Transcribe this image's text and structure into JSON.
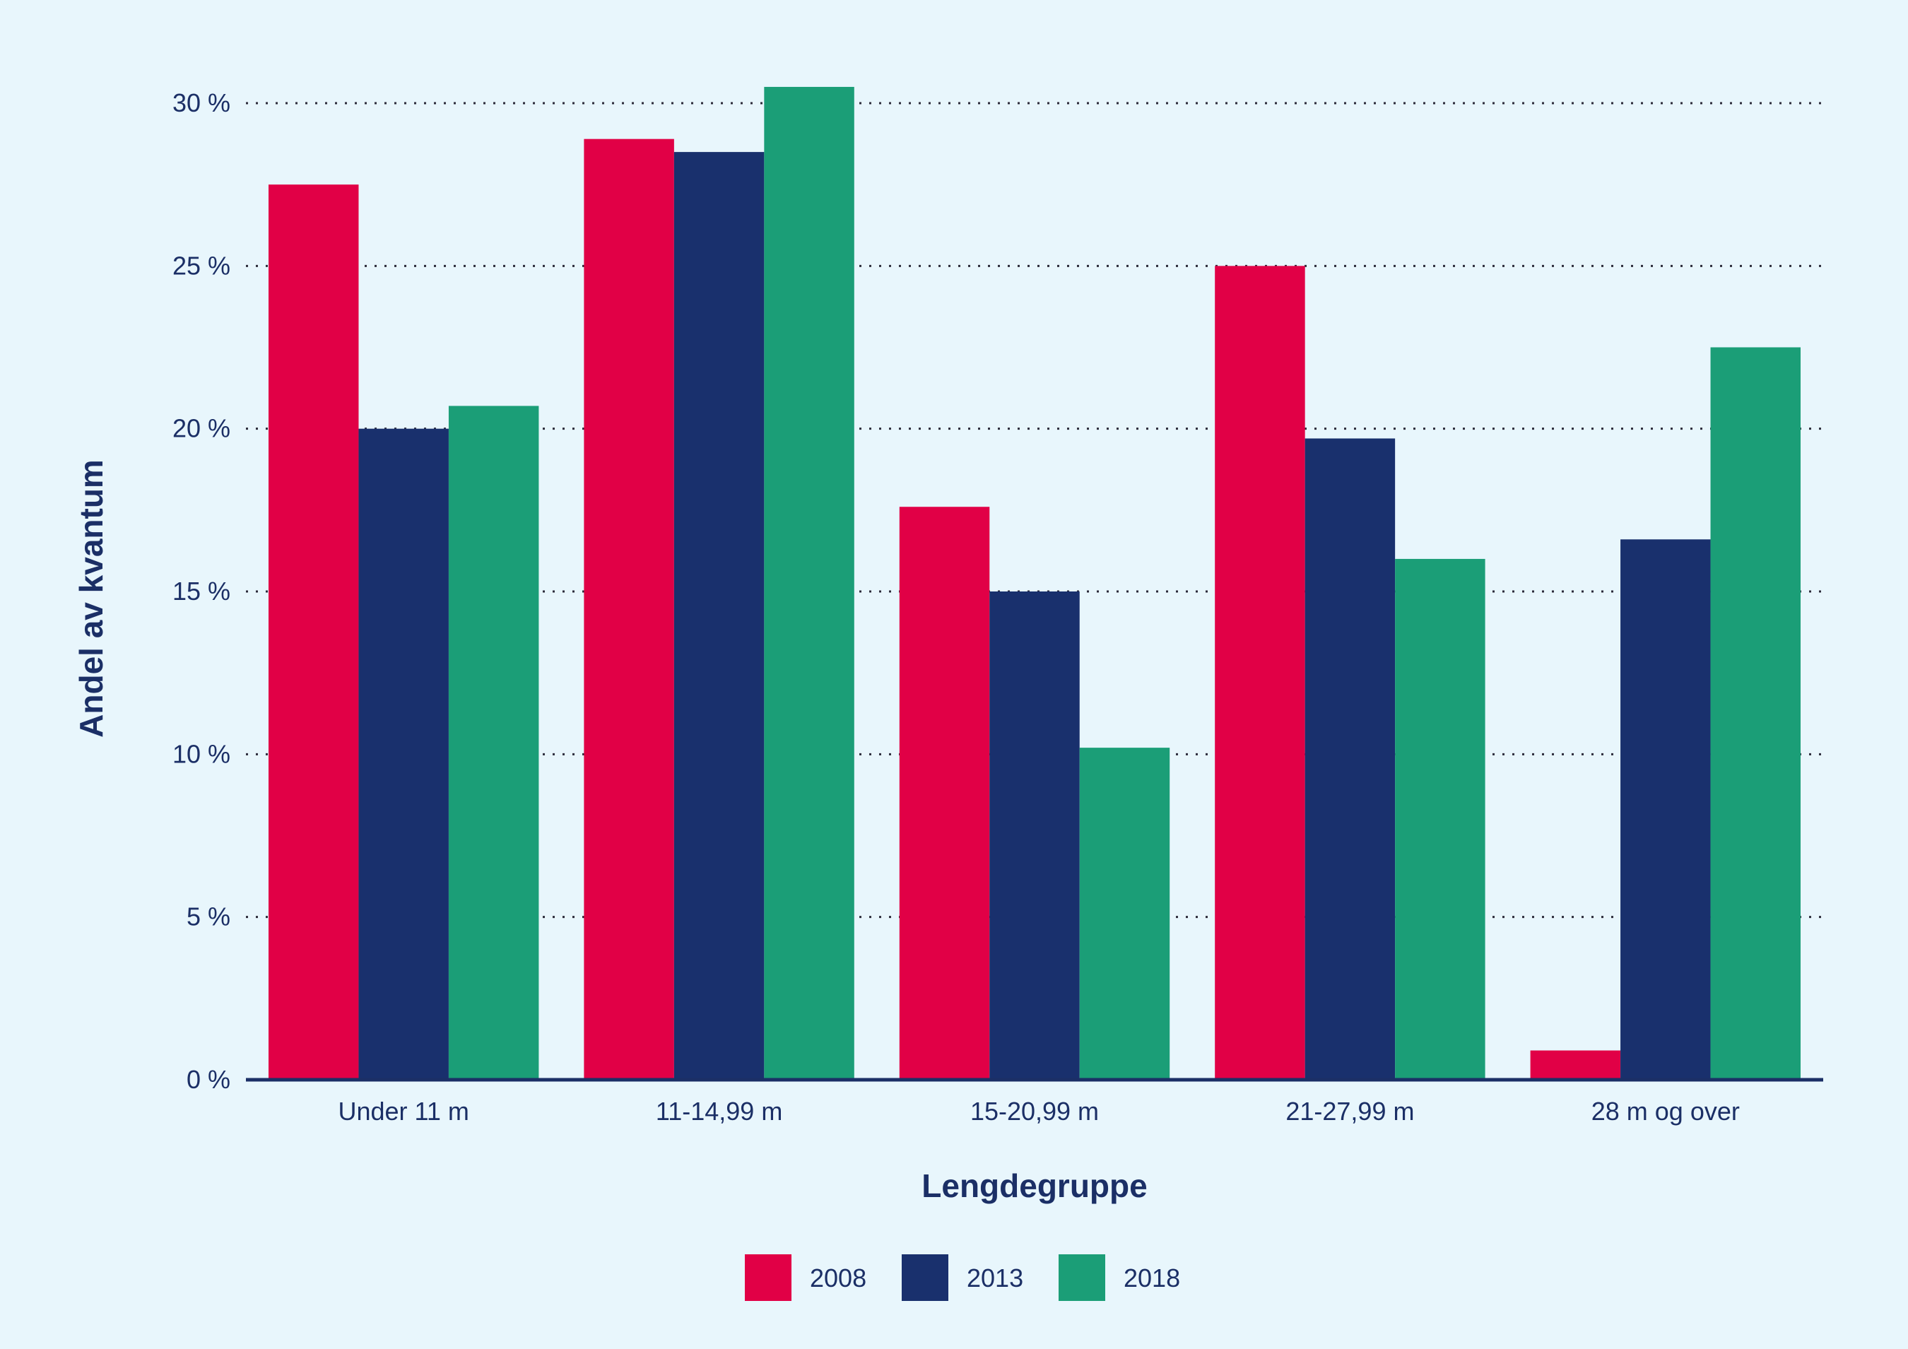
{
  "chart_data": {
    "type": "bar",
    "categories": [
      "Under 11 m",
      "11-14,99 m",
      "15-20,99 m",
      "21-27,99 m",
      "28 m og over"
    ],
    "series": [
      {
        "name": "2008",
        "color": "#e10046",
        "values": [
          27.5,
          28.9,
          17.6,
          25.0,
          0.9
        ]
      },
      {
        "name": "2013",
        "color": "#19306d",
        "values": [
          20.0,
          28.5,
          15.0,
          19.7,
          16.6
        ]
      },
      {
        "name": "2018",
        "color": "#1b9e77",
        "values": [
          20.7,
          30.5,
          10.2,
          16.0,
          22.5
        ]
      }
    ],
    "xlabel": "Lengdegruppe",
    "ylabel": "Andel av kvantum",
    "ylim": [
      0,
      30
    ],
    "yticks": [
      0,
      5,
      10,
      15,
      20,
      25,
      30
    ],
    "ytick_labels": [
      "0 %",
      "5 %",
      "10 %",
      "15 %",
      "20 %",
      "25 %",
      "30 %"
    ],
    "grid": true,
    "legend_position": "bottom-center"
  }
}
